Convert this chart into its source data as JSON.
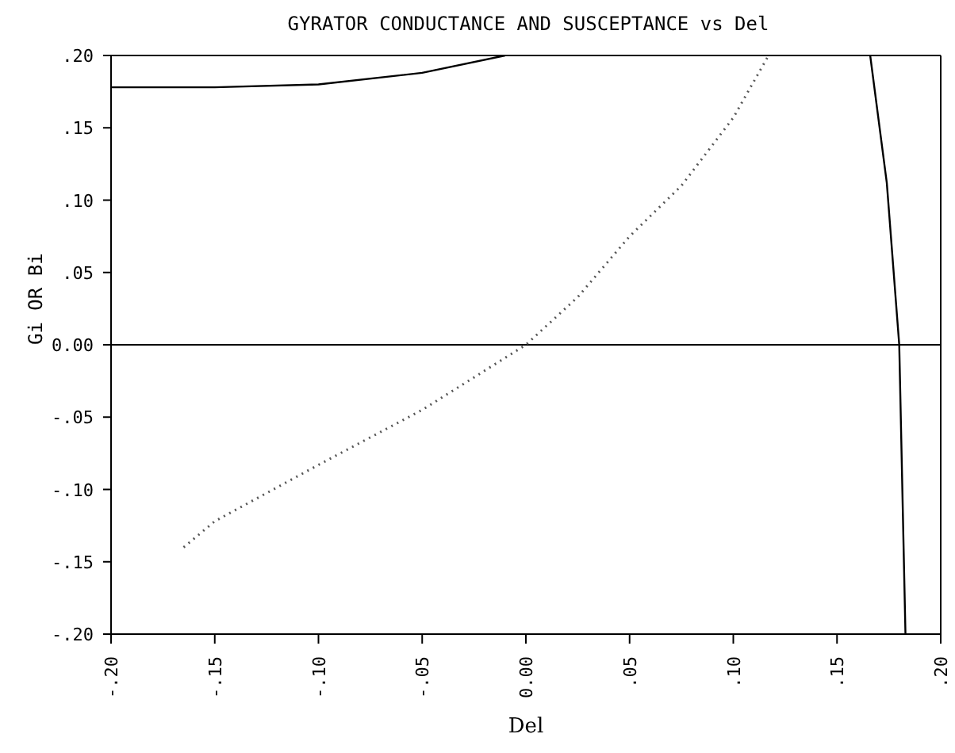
{
  "chart_data": {
    "type": "line",
    "title": "GYRATOR CONDUCTANCE AND SUSCEPTANCE vs Del",
    "xlabel": "Del",
    "ylabel": "Gi OR Bi",
    "xlim": [
      -0.2,
      0.2
    ],
    "ylim": [
      -0.2,
      0.2
    ],
    "xticks": [
      {
        "value": -0.2,
        "label": "-.20"
      },
      {
        "value": -0.15,
        "label": "-.15"
      },
      {
        "value": -0.1,
        "label": "-.10"
      },
      {
        "value": -0.05,
        "label": "-.05"
      },
      {
        "value": 0,
        "label": "0.00"
      },
      {
        "value": 0.05,
        "label": ".05"
      },
      {
        "value": 0.1,
        "label": ".10"
      },
      {
        "value": 0.15,
        "label": ".15"
      },
      {
        "value": 0.2,
        "label": ".20"
      }
    ],
    "yticks": [
      {
        "value": 0.2,
        "label": ".20"
      },
      {
        "value": 0.15,
        "label": ".15"
      },
      {
        "value": 0.1,
        "label": ".10"
      },
      {
        "value": 0.05,
        "label": ".05"
      },
      {
        "value": 0,
        "label": "0.00"
      },
      {
        "value": -0.05,
        "label": "-.05"
      },
      {
        "value": -0.1,
        "label": "-.10"
      },
      {
        "value": -0.15,
        "label": "-.15"
      },
      {
        "value": -0.2,
        "label": "-.20"
      }
    ],
    "series": [
      {
        "color": "#000000",
        "line_style": "solid",
        "x": [
          -0.2,
          -0.15,
          -0.1,
          -0.05,
          -0.01,
          0.08,
          0.166,
          0.174,
          0.18,
          0.183
        ],
        "values": [
          0.178,
          0.178,
          0.18,
          0.188,
          0.2,
          null,
          0.2,
          0.112,
          0,
          -0.2
        ]
      },
      {
        "color": "#555555",
        "line_style": "dotted",
        "x": [
          -0.165,
          -0.15,
          -0.1,
          -0.05,
          0,
          0.025,
          0.05,
          0.075,
          0.1,
          0.117
        ],
        "values": [
          -0.14,
          -0.122,
          -0.083,
          -0.045,
          0,
          0.033,
          0.075,
          0.11,
          0.157,
          0.2
        ]
      }
    ],
    "ref_lines": [
      {
        "axis": "y",
        "value": 0,
        "color": "#000000"
      }
    ],
    "grid": false,
    "marker": "none"
  }
}
